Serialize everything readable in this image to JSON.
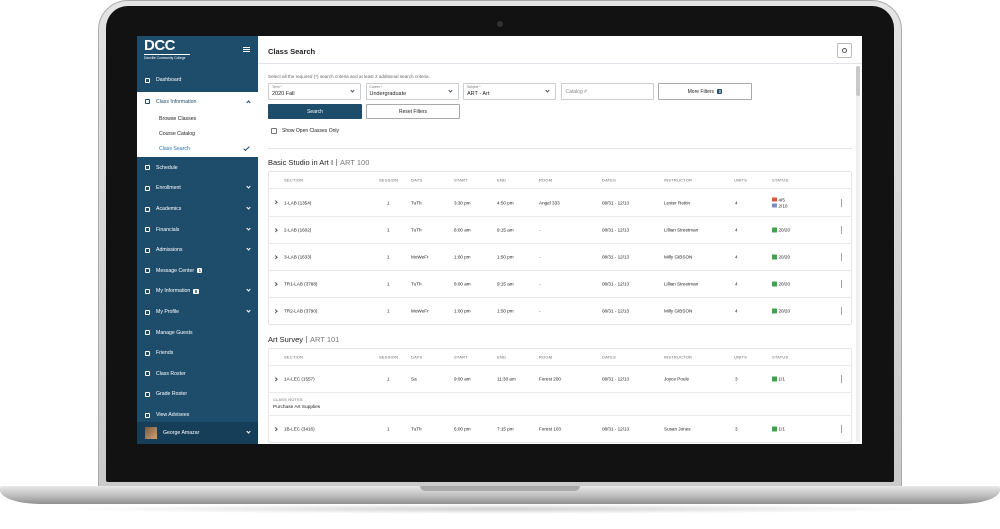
{
  "sidebar": {
    "logo": "DCC",
    "logo_subtitle": "Danville Community College",
    "items": [
      {
        "label": "Dashboard"
      },
      {
        "label": "Class Information",
        "expandable": true,
        "children": [
          {
            "label": "Browse Classes"
          },
          {
            "label": "Course Catalog"
          },
          {
            "label": "Class Search",
            "active": true
          }
        ]
      },
      {
        "label": "Schedule"
      },
      {
        "label": "Enrollment",
        "expandable": true
      },
      {
        "label": "Academics",
        "expandable": true
      },
      {
        "label": "Financials",
        "expandable": true
      },
      {
        "label": "Admissions",
        "expandable": true
      },
      {
        "label": "Message Center",
        "badge": "1"
      },
      {
        "label": "My Information",
        "badge": "8",
        "expandable": true
      },
      {
        "label": "My Profile",
        "expandable": true
      },
      {
        "label": "Manage Guests"
      },
      {
        "label": "Friends"
      },
      {
        "label": "Class Roster"
      },
      {
        "label": "Grade Roster"
      },
      {
        "label": "View Advisees"
      }
    ],
    "user": "George Amazar"
  },
  "header": {
    "title": "Class Search"
  },
  "search": {
    "instructions": "Select all the required (*) search criteria and at least 2 additional search criteria.",
    "fields": [
      {
        "label": "Term *",
        "value": "2020 Fall"
      },
      {
        "label": "Career *",
        "value": "Undergraduate"
      },
      {
        "label": "Subject *",
        "value": "ART - Art"
      },
      {
        "placeholder": "Catalog #"
      }
    ],
    "more_filters": "More Filters",
    "more_filters_count": "3",
    "search_button": "Search",
    "reset_button": "Reset Filters",
    "open_only": "Show Open Classes Only"
  },
  "table_columns": [
    "SECTION",
    "SESSION",
    "DAYS",
    "START",
    "END",
    "ROOM",
    "DATES",
    "INSTRUCTOR",
    "UNITS",
    "STATUS"
  ],
  "courses": [
    {
      "title": "Basic Studio in Art I",
      "code": "ART 100",
      "rows": [
        {
          "cells": [
            "1-LAB (1354)",
            1,
            "TuTh",
            "3:30 pm",
            "4:50 pm",
            "Angel 333",
            "08/31 - 12/13",
            "Lester Rettin",
            4
          ],
          "status": [
            {
              "text": "4/5",
              "color": "#e0533d"
            },
            {
              "text": "2/10",
              "color": "#7a8cc8"
            }
          ]
        },
        {
          "cells": [
            "2-LAB (1602)",
            1,
            "TuTh",
            "8:00 am",
            "9:15 am",
            "-",
            "08/31 - 12/13",
            "Lillian Streetman",
            4
          ],
          "status": [
            {
              "text": "20/20",
              "color": "#3fa34d"
            }
          ]
        },
        {
          "cells": [
            "3-LAB (1633)",
            1,
            "MoWeFr",
            "1:00 pm",
            "1:50 pm",
            "-",
            "08/31 - 12/13",
            "Milly GIBSON",
            4
          ],
          "status": [
            {
              "text": "20/20",
              "color": "#3fa34d"
            }
          ]
        },
        {
          "cells": [
            "TR1-LAB (3788)",
            1,
            "TuTh",
            "8:00 am",
            "9:15 am",
            "-",
            "08/31 - 12/13",
            "Lillian Streetman",
            4
          ],
          "status": [
            {
              "text": "20/20",
              "color": "#3fa34d"
            }
          ]
        },
        {
          "cells": [
            "TR2-LAB (3790)",
            1,
            "MoWeFr",
            "1:00 pm",
            "1:50 pm",
            "-",
            "08/31 - 12/13",
            "Milly GIBSON",
            4
          ],
          "status": [
            {
              "text": "20/20",
              "color": "#3fa34d"
            }
          ]
        }
      ]
    },
    {
      "title": "Art Survey",
      "code": "ART 101",
      "rows": [
        {
          "cells": [
            "1A-LEC (1557)",
            1,
            "Sa",
            "9:00 am",
            "11:30 am",
            "Forest 200",
            "08/31 - 12/13",
            "Joyce Poule",
            3
          ],
          "status": [
            {
              "text": "1/1",
              "color": "#3fa34d"
            }
          ],
          "notes": {
            "label": "CLASS NOTES",
            "text": "Purchase Art Supplies"
          }
        },
        {
          "cells": [
            "1B-LEC (3416)",
            1,
            "TuTh",
            "6:00 pm",
            "7:15 pm",
            "Forest 103",
            "08/31 - 12/13",
            "Susan Jones",
            3
          ],
          "status": [
            {
              "text": "1/1",
              "color": "#3fa34d"
            }
          ]
        }
      ]
    }
  ]
}
